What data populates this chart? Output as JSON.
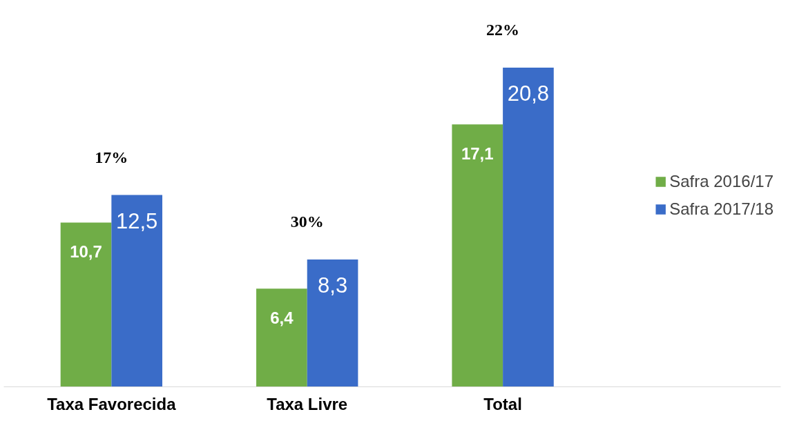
{
  "chart_data": {
    "type": "bar",
    "categories": [
      "Taxa Favorecida",
      "Taxa Livre",
      "Total"
    ],
    "series": [
      {
        "name": "Safra 2016/17",
        "color": "#70ad47",
        "values": [
          10.7,
          6.4,
          17.1
        ],
        "value_labels": [
          "10,7",
          "6,4",
          "17,1"
        ]
      },
      {
        "name": "Safra 2017/18",
        "color": "#3a6cc8",
        "values": [
          12.5,
          8.3,
          20.8
        ],
        "value_labels": [
          "12,5",
          "8,3",
          "20,8"
        ]
      }
    ],
    "annotations": [
      "17%",
      "30%",
      "22%"
    ],
    "legend": "right",
    "grid": false
  }
}
